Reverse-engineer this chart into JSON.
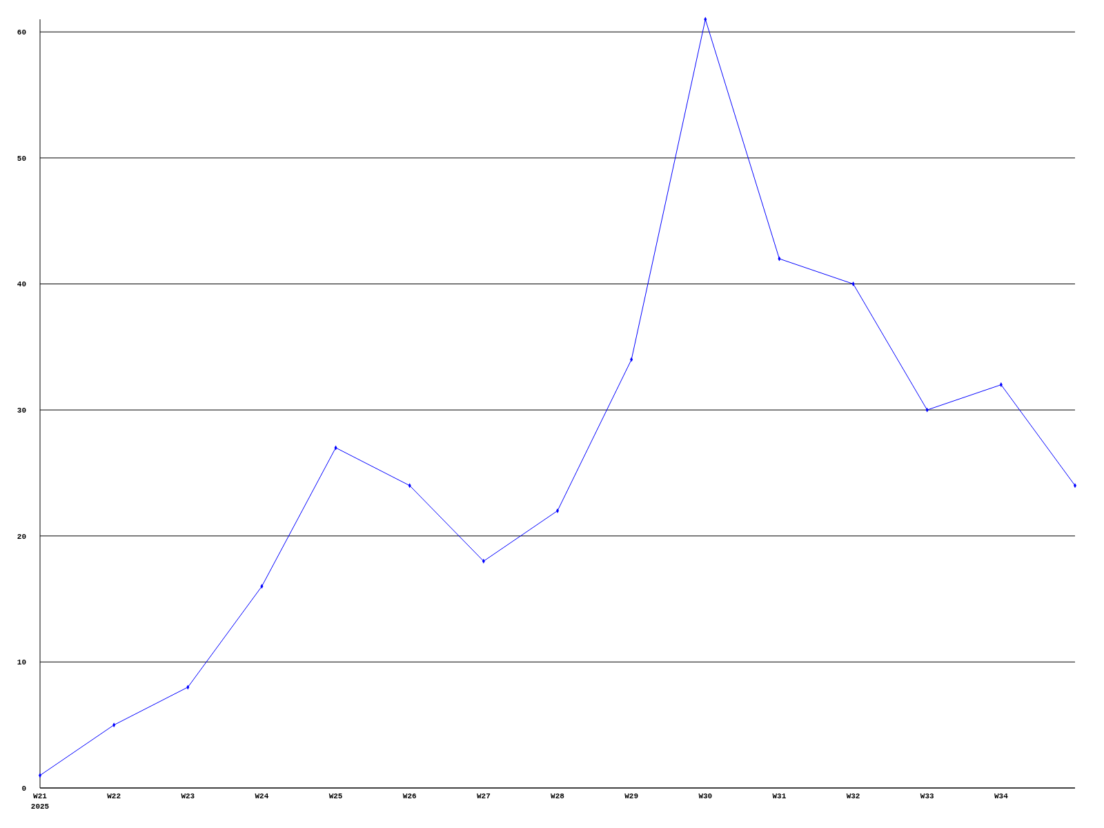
{
  "chart_data": {
    "type": "line",
    "categories": [
      "W21\n2025",
      "W22",
      "W23",
      "W24",
      "W25",
      "W26",
      "W27",
      "W28",
      "W29",
      "W30",
      "W31",
      "W32",
      "W33",
      "W34",
      null
    ],
    "series": [
      {
        "color": "#0000ff",
        "values": [
          1,
          5,
          8,
          16,
          27,
          24,
          18,
          22,
          34,
          61,
          42,
          40,
          30,
          32,
          24
        ]
      }
    ],
    "ylim": [
      0,
      61
    ],
    "yticks": [
      0,
      10,
      20,
      30,
      40,
      50,
      60
    ],
    "grid": "y",
    "marker": "diamond",
    "line_style": "solid"
  }
}
